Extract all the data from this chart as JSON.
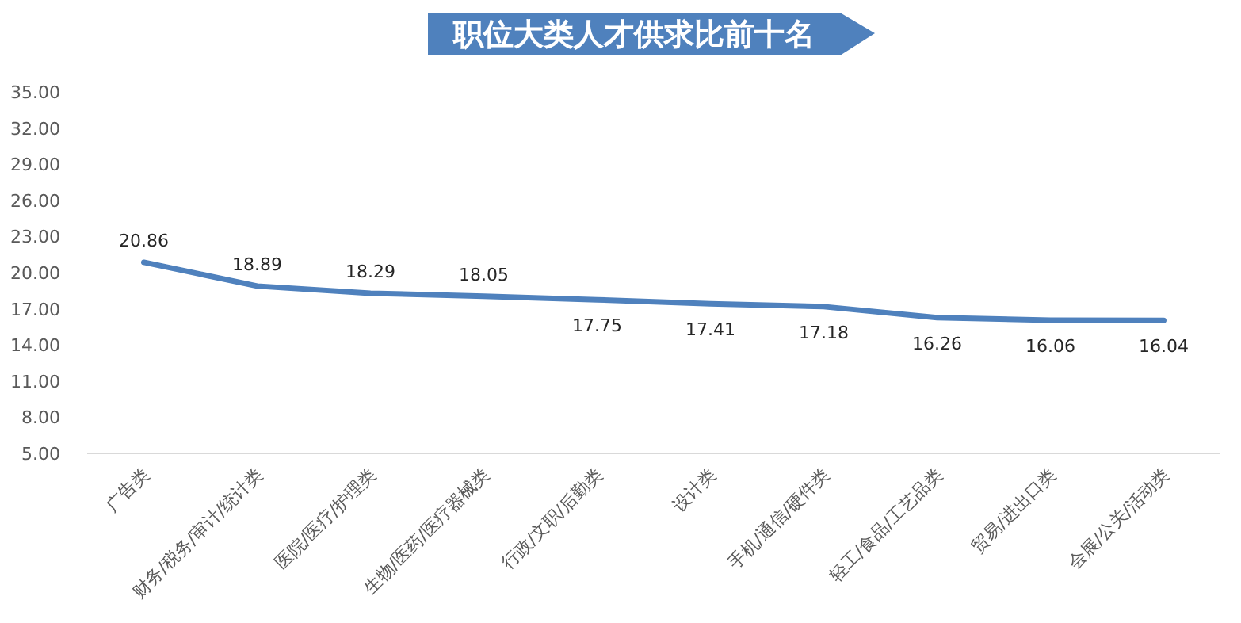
{
  "chart_data": {
    "type": "line",
    "title": "职位大类人才供求比前十名",
    "categories": [
      "广告类",
      "财务/税务/审计/统计类",
      "医院/医疗/护理类",
      "生物/医药/医疗器械类",
      "行政/文职/后勤类",
      "设计类",
      "手机/通信/硬件类",
      "轻工/食品/工艺品类",
      "贸易/进出口类",
      "会展/公关/活动类"
    ],
    "series": [
      {
        "color": "#4f81bd",
        "values": [
          20.86,
          18.89,
          18.29,
          18.05,
          17.75,
          17.41,
          17.18,
          16.26,
          16.06,
          16.04
        ]
      }
    ],
    "ylim": [
      5,
      35
    ],
    "yticks": [
      {
        "value": 5,
        "label": "5.00"
      },
      {
        "value": 8,
        "label": "8.00"
      },
      {
        "value": 11,
        "label": "11.00"
      },
      {
        "value": 14,
        "label": "14.00"
      },
      {
        "value": 17,
        "label": "17.00"
      },
      {
        "value": 20,
        "label": "20.00"
      },
      {
        "value": 23,
        "label": "23.00"
      },
      {
        "value": 26,
        "label": "26.00"
      },
      {
        "value": 29,
        "label": "29.00"
      },
      {
        "value": 32,
        "label": "32.00"
      },
      {
        "value": 35,
        "label": "35.00"
      }
    ],
    "grid": false,
    "marker": "none",
    "line_style": "solid",
    "data_labels": true
  }
}
